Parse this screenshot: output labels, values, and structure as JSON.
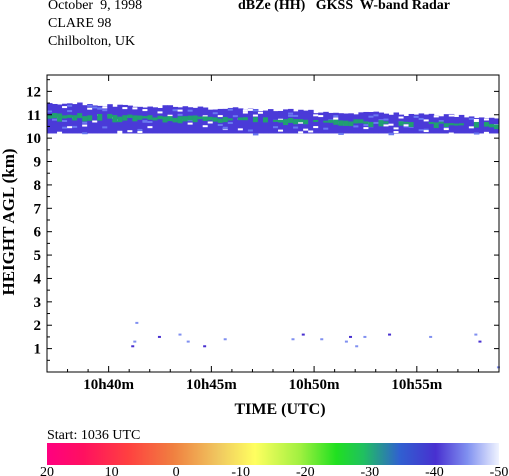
{
  "header": {
    "date": "October  9, 1998",
    "campaign": "CLARE 98",
    "site": "Chilbolton, UK",
    "product": "dBZe (HH)   GKSS  W-band Radar"
  },
  "start_label": "Start:  1036 UTC",
  "chart_data": {
    "type": "heatmap",
    "title": "dBZe (HH)   GKSS  W-band Radar",
    "xlabel": "TIME (UTC)",
    "ylabel": "HEIGHT AGL (km)",
    "x_range_minutes_utc": [
      "10h37m",
      "10h59m"
    ],
    "x_ticks": [
      "10h40m",
      "10h45m",
      "10h50m",
      "10h55m"
    ],
    "y_range_km": [
      0,
      12.7
    ],
    "y_ticks": [
      1,
      2,
      3,
      4,
      5,
      6,
      7,
      8,
      9,
      10,
      11,
      12
    ],
    "grid": false,
    "cloud_layer": {
      "description_values": {
        "base_km_start": 10.2,
        "base_km_end": 10.2,
        "top_km_start": 11.5,
        "top_km_end": 10.9,
        "dominant_dBZe": -40,
        "core_dBZe": -28
      },
      "core_band_km": [
        [
          10.6,
          11.1
        ],
        [
          10.3,
          10.7
        ]
      ]
    },
    "low_echoes_km": [
      1.1,
      1.3,
      1.5,
      1.6,
      2.1
    ],
    "colorbar": {
      "ticks": [
        "20",
        "10",
        "0",
        "-10",
        "-20",
        "-30",
        "-40",
        "-50"
      ],
      "colors": [
        "#ff0080",
        "#ff2a2a",
        "#f07030",
        "#f0c060",
        "#ffff60",
        "#a0f040",
        "#20e040",
        "#10b860",
        "#3070c0",
        "#4830d0",
        "#5050e0",
        "#8090f0",
        "#e8ecff"
      ]
    }
  }
}
